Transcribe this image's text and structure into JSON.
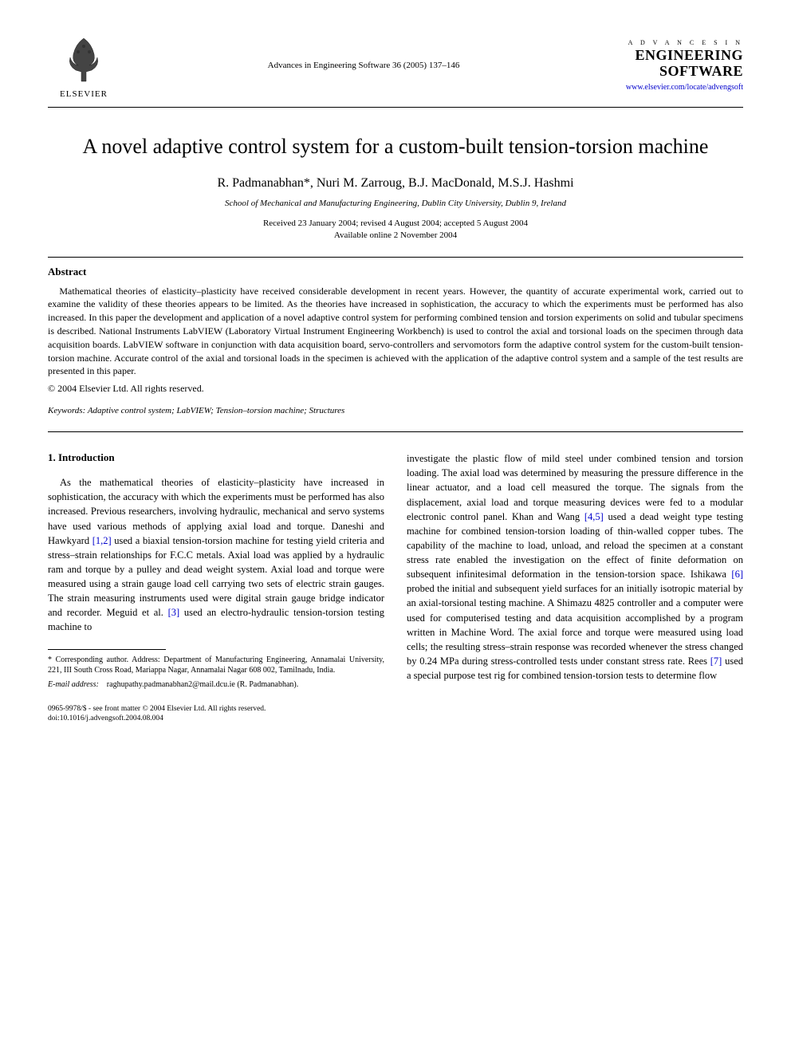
{
  "header": {
    "publisher": "ELSEVIER",
    "journal_ref": "Advances in Engineering Software 36 (2005) 137–146",
    "journal_logo_top": "A D V A N C E S  I N",
    "journal_logo_line1": "ENGINEERING",
    "journal_logo_line2": "SOFTWARE",
    "journal_url": "www.elsevier.com/locate/advengsoft"
  },
  "title": "A novel adaptive control system for a custom-built tension-torsion machine",
  "authors": "R. Padmanabhan*, Nuri M. Zarroug, B.J. MacDonald, M.S.J. Hashmi",
  "affiliation": "School of Mechanical and Manufacturing Engineering, Dublin City University, Dublin 9, Ireland",
  "dates": {
    "line1": "Received 23 January 2004; revised 4 August 2004; accepted 5 August 2004",
    "line2": "Available online 2 November 2004"
  },
  "abstract": {
    "heading": "Abstract",
    "text": "Mathematical theories of elasticity–plasticity have received considerable development in recent years. However, the quantity of accurate experimental work, carried out to examine the validity of these theories appears to be limited. As the theories have increased in sophistication, the accuracy to which the experiments must be performed has also increased. In this paper the development and application of a novel adaptive control system for performing combined tension and torsion experiments on solid and tubular specimens is described. National Instruments LabVIEW (Laboratory Virtual Instrument Engineering Workbench) is used to control the axial and torsional loads on the specimen through data acquisition boards. LabVIEW software in conjunction with data acquisition board, servo-controllers and servomotors form the adaptive control system for the custom-built tension-torsion machine. Accurate control of the axial and torsional loads in the specimen is achieved with the application of the adaptive control system and a sample of the test results are presented in this paper.",
    "copyright": "© 2004 Elsevier Ltd. All rights reserved."
  },
  "keywords": {
    "label": "Keywords:",
    "text": " Adaptive control system; LabVIEW; Tension–torsion machine; Structures"
  },
  "body": {
    "section_heading": "1. Introduction",
    "col1": "As the mathematical theories of elasticity–plasticity have increased in sophistication, the accuracy with which the experiments must be performed has also increased. Previous researchers, involving hydraulic, mechanical and servo systems have used various methods of applying axial load and torque. Daneshi and Hawkyard [1,2] used a biaxial tension-torsion machine for testing yield criteria and stress–strain relationships for F.C.C metals. Axial load was applied by a hydraulic ram and torque by a pulley and dead weight system. Axial load and torque were measured using a strain gauge load cell carrying two sets of electric strain gauges. The strain measuring instruments used were digital strain gauge bridge indicator and recorder. Meguid et al. [3] used an electro-hydraulic tension-torsion testing machine to",
    "col2": "investigate the plastic flow of mild steel under combined tension and torsion loading. The axial load was determined by measuring the pressure difference in the linear actuator, and a load cell measured the torque. The signals from the displacement, axial load and torque measuring devices were fed to a modular electronic control panel. Khan and Wang [4,5] used a dead weight type testing machine for combined tension-torsion loading of thin-walled copper tubes. The capability of the machine to load, unload, and reload the specimen at a constant stress rate enabled the investigation on the effect of finite deformation on subsequent infinitesimal deformation in the tension-torsion space. Ishikawa [6] probed the initial and subsequent yield surfaces for an initially isotropic material by an axial-torsional testing machine. A Shimazu 4825 controller and a computer were used for computerised testing and data acquisition accomplished by a program written in Machine Word. The axial force and torque were measured using load cells; the resulting stress–strain response was recorded whenever the stress changed by 0.24 MPa during stress-controlled tests under constant stress rate. Rees [7] used a special purpose test rig for combined tension-torsion tests to determine flow",
    "refs": {
      "r12": "[1,2]",
      "r3": "[3]",
      "r45": "[4,5]",
      "r6": "[6]",
      "r7": "[7]"
    }
  },
  "footnote": {
    "corr": "* Corresponding author. Address: Department of Manufacturing Engineering, Annamalai University, 221, III South Cross Road, Mariappa Nagar, Annamalai Nagar 608 002, Tamilnadu, India.",
    "email_label": "E-mail address:",
    "email": "raghupathy.padmanabhan2@mail.dcu.ie",
    "email_name": "(R. Padmanabhan)."
  },
  "footer": {
    "line1": "0965-9978/$ - see front matter © 2004 Elsevier Ltd. All rights reserved.",
    "line2": "doi:10.1016/j.advengsoft.2004.08.004"
  },
  "colors": {
    "link": "#0000cc",
    "text": "#000000",
    "bg": "#ffffff"
  }
}
